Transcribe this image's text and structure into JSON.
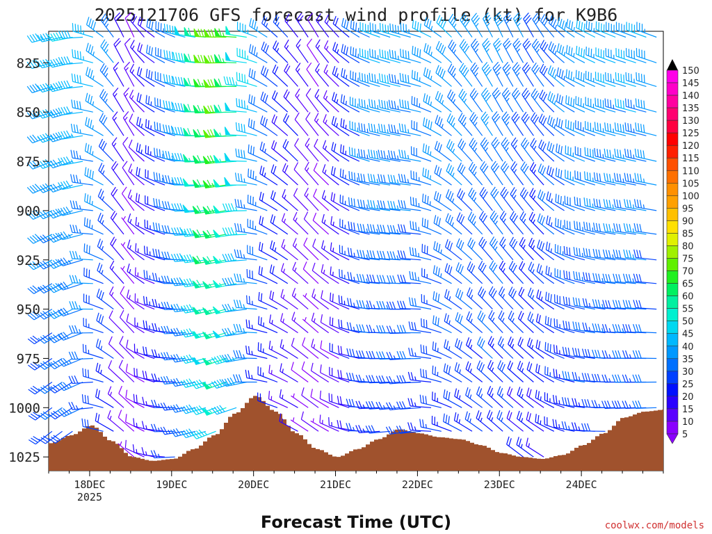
{
  "chart_data": {
    "type": "wind-barb-time-height",
    "title": "2025121706 GFS forecast wind profile (kt) for K9B6",
    "xlabel": "Forecast Time (UTC)",
    "ylabel": "",
    "credit": "coolwx.com/models",
    "x_ticks": [
      {
        "label": "18DEC",
        "sublabel": "2025",
        "hour": 18
      },
      {
        "label": "19DEC",
        "sublabel": "",
        "hour": 42
      },
      {
        "label": "20DEC",
        "sublabel": "",
        "hour": 66
      },
      {
        "label": "21DEC",
        "sublabel": "",
        "hour": 90
      },
      {
        "label": "22DEC",
        "sublabel": "",
        "hour": 114
      },
      {
        "label": "23DEC",
        "sublabel": "",
        "hour": 138
      },
      {
        "label": "24DEC",
        "sublabel": "",
        "hour": 162
      }
    ],
    "xlim_hours": [
      6,
      186
    ],
    "y_ticks": [
      825,
      850,
      875,
      900,
      925,
      950,
      975,
      1000,
      1025
    ],
    "ylim_hpa": [
      809,
      1032
    ],
    "colorbar": {
      "levels": [
        5,
        10,
        15,
        20,
        25,
        30,
        35,
        40,
        45,
        50,
        55,
        60,
        65,
        70,
        75,
        80,
        85,
        90,
        95,
        100,
        105,
        110,
        115,
        120,
        125,
        130,
        135,
        140,
        145,
        150
      ],
      "colors": [
        "#8A00FF",
        "#5A00FF",
        "#2A00FF",
        "#0010FF",
        "#0040FF",
        "#0070FF",
        "#0098FF",
        "#00B8FF",
        "#00D8F0",
        "#00F0D0",
        "#00F0A0",
        "#00F060",
        "#20F020",
        "#60F000",
        "#A0F000",
        "#E0F000",
        "#FFE000",
        "#FFC000",
        "#FFA000",
        "#FF9000",
        "#FF7000",
        "#FF5000",
        "#FF2000",
        "#FF0000",
        "#FF0040",
        "#FF0070",
        "#FF00A0",
        "#FF00C8",
        "#FF00E8",
        "#FF00FF"
      ],
      "unit": "kt"
    },
    "terrain": {
      "color": "#A0522D",
      "hours": [
        6,
        12,
        18,
        24,
        30,
        36,
        42,
        48,
        54,
        60,
        66,
        72,
        78,
        84,
        90,
        96,
        102,
        108,
        114,
        120,
        126,
        132,
        138,
        144,
        150,
        156,
        162,
        168,
        174,
        180,
        186
      ],
      "pressure_hpa": [
        1018,
        1014,
        1009,
        1017,
        1025,
        1027,
        1026,
        1021,
        1014,
        1003,
        994,
        1002,
        1013,
        1021,
        1025,
        1021,
        1016,
        1011,
        1013,
        1015,
        1016,
        1019,
        1023,
        1025,
        1026,
        1024,
        1019,
        1013,
        1005,
        1002,
        1001
      ]
    },
    "barb_time_step_hours": 3,
    "barb_levels_hpa": [
      812,
      825,
      837,
      850,
      862,
      875,
      887,
      900,
      912,
      925,
      937,
      950,
      962,
      975,
      987,
      1000,
      1012,
      1025
    ],
    "wind_keyframes": [
      {
        "hour": 6,
        "dir": 255,
        "spd": 42
      },
      {
        "hour": 15,
        "dir": 260,
        "spd": 45
      },
      {
        "hour": 24,
        "dir": 320,
        "spd": 38
      },
      {
        "hour": 30,
        "dir": 340,
        "spd": 10
      },
      {
        "hour": 36,
        "dir": 310,
        "spd": 20
      },
      {
        "hour": 48,
        "dir": 280,
        "spd": 45
      },
      {
        "hour": 57,
        "dir": 270,
        "spd": 78
      },
      {
        "hour": 63,
        "dir": 275,
        "spd": 55
      },
      {
        "hour": 72,
        "dir": 310,
        "spd": 30
      },
      {
        "hour": 84,
        "dir": 330,
        "spd": 12
      },
      {
        "hour": 90,
        "dir": 320,
        "spd": 15
      },
      {
        "hour": 102,
        "dir": 290,
        "spd": 40
      },
      {
        "hour": 114,
        "dir": 285,
        "spd": 38
      },
      {
        "hour": 126,
        "dir": 320,
        "spd": 38
      },
      {
        "hour": 138,
        "dir": 335,
        "spd": 37
      },
      {
        "hour": 150,
        "dir": 330,
        "spd": 30
      },
      {
        "hour": 162,
        "dir": 300,
        "spd": 38
      },
      {
        "hour": 174,
        "dir": 290,
        "spd": 40
      },
      {
        "hour": 186,
        "dir": 290,
        "spd": 40
      }
    ]
  }
}
